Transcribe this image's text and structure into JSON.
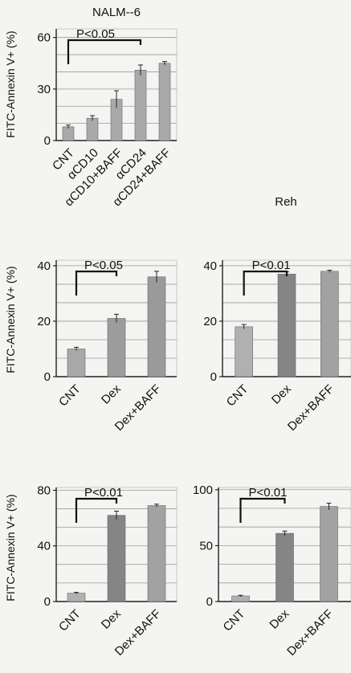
{
  "colors": {
    "bar": "#a6a6a6",
    "bar_dark": "#8a8a8a",
    "grid": "#9a9a9a",
    "axis": "#222222",
    "ink": "#111111"
  },
  "chart_data": [
    {
      "type": "bar",
      "title": "NALM--6",
      "ylabel": "FITC-Annexin V+ (%)",
      "categories": [
        "CNT",
        "αCD10",
        "αCD10+BAFF",
        "αCD24",
        "αCD24+BAFF"
      ],
      "values": [
        8,
        13,
        24,
        41,
        45
      ],
      "errors": [
        1,
        1.5,
        5,
        3,
        1
      ],
      "ylim": [
        0,
        65
      ],
      "yticks": [
        0,
        30,
        60
      ],
      "grid": true,
      "annotation": {
        "text": "P<0.05",
        "from": 0,
        "to": 3
      }
    },
    {
      "type": "bar",
      "title": "",
      "ylabel": "FITC-Annexin V+ (%)",
      "categories": [
        "CNT",
        "Dex",
        "Dex+BAFF"
      ],
      "values": [
        10,
        21,
        36
      ],
      "errors": [
        0.6,
        1.5,
        2
      ],
      "ylim": [
        0,
        42
      ],
      "yticks": [
        0,
        20,
        40
      ],
      "grid": true,
      "annotation": {
        "text": "P<0.05",
        "from": 0,
        "to": 1
      }
    },
    {
      "type": "bar",
      "title": "Reh",
      "ylabel": "",
      "categories": [
        "CNT",
        "Dex",
        "Dex+BAFF"
      ],
      "values": [
        18,
        37,
        38
      ],
      "errors": [
        0.8,
        0.8,
        0.4
      ],
      "ylim": [
        0,
        42
      ],
      "yticks": [
        0,
        20,
        40
      ],
      "grid": true,
      "annotation": {
        "text": "P<0.01",
        "from": 0,
        "to": 1
      }
    },
    {
      "type": "bar",
      "title": "",
      "ylabel": "FITC-Annexin V+ (%)",
      "categories": [
        "CNT",
        "Dex",
        "Dex+BAFF"
      ],
      "values": [
        6,
        62,
        69
      ],
      "errors": [
        0.6,
        3,
        1
      ],
      "ylim": [
        0,
        82
      ],
      "yticks": [
        0,
        40,
        80
      ],
      "grid": true,
      "annotation": {
        "text": "P<0.01",
        "from": 0,
        "to": 1
      }
    },
    {
      "type": "bar",
      "title": "",
      "ylabel": "",
      "categories": [
        "CNT",
        "Dex",
        "Dex+BAFF"
      ],
      "values": [
        5,
        61,
        85
      ],
      "errors": [
        0.6,
        2,
        3
      ],
      "ylim": [
        0,
        102
      ],
      "yticks": [
        0,
        50,
        100
      ],
      "grid": true,
      "annotation": {
        "text": "P<0.01",
        "from": 0,
        "to": 1
      }
    }
  ]
}
